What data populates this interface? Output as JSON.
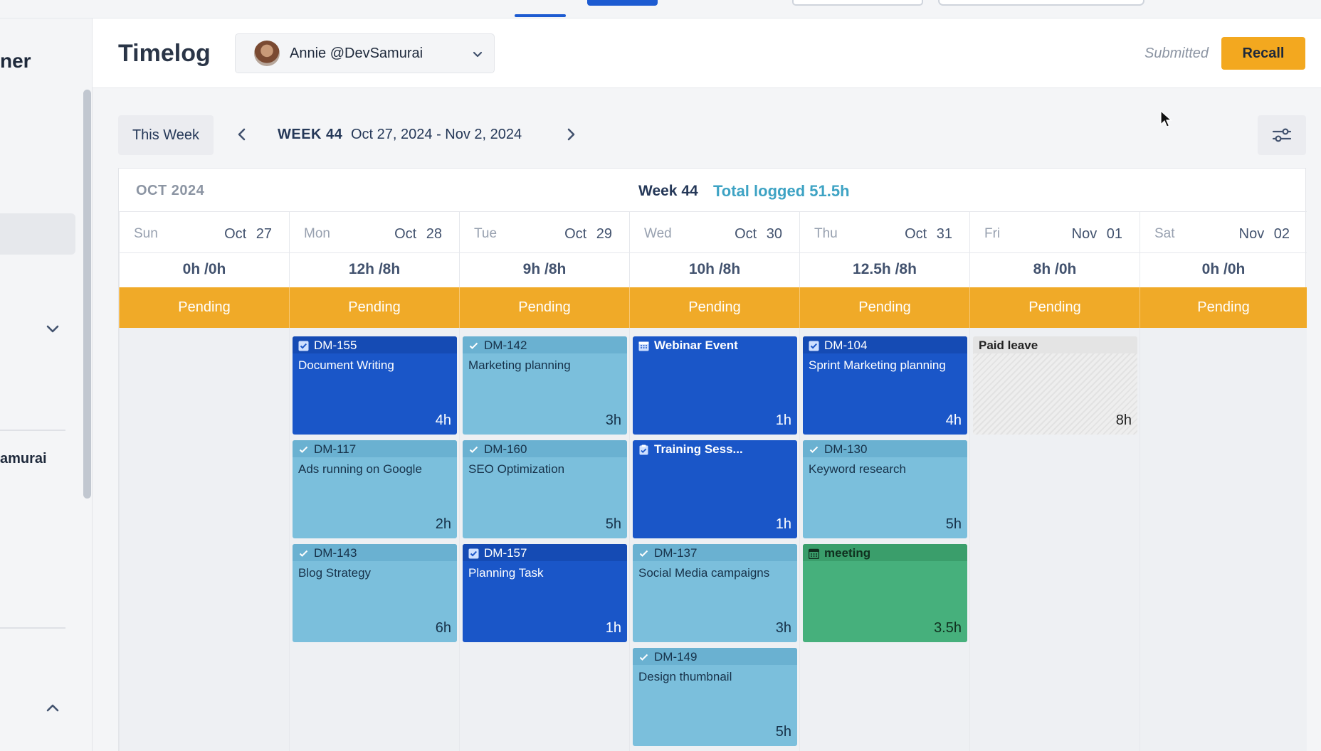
{
  "sidebar": {
    "title": "ner",
    "user": "amurai"
  },
  "header": {
    "title": "Timelog",
    "user_select": "Annie @DevSamurai",
    "status": "Submitted",
    "recall_label": "Recall"
  },
  "nav": {
    "this_week_label": "This Week",
    "week_label": "WEEK 44",
    "date_range": "Oct 27, 2024 - Nov 2, 2024"
  },
  "calendar": {
    "month": "OCT 2024",
    "week_title": "Week 44",
    "total_logged": "Total logged 51.5h",
    "days": [
      {
        "name": "Sun",
        "date": "Oct 27",
        "hours": "0h /0h",
        "status": "Pending"
      },
      {
        "name": "Mon",
        "date": "Oct 28",
        "hours": "12h /8h",
        "status": "Pending"
      },
      {
        "name": "Tue",
        "date": "Oct 29",
        "hours": "9h /8h",
        "status": "Pending"
      },
      {
        "name": "Wed",
        "date": "Oct 30",
        "hours": "10h /8h",
        "status": "Pending"
      },
      {
        "name": "Thu",
        "date": "Oct 31",
        "hours": "12.5h /8h",
        "status": "Pending"
      },
      {
        "name": "Fri",
        "date": "Nov 01",
        "hours": "8h /0h",
        "status": "Pending"
      },
      {
        "name": "Sat",
        "date": "Nov 02",
        "hours": "0h /0h",
        "status": "Pending"
      }
    ]
  },
  "cards": {
    "mon": [
      {
        "key": "DM-155",
        "title": "Document Writing",
        "hours": "4h",
        "style": "dark",
        "icon": "checkbox-icon"
      },
      {
        "key": "DM-117",
        "title": "Ads running on Google",
        "hours": "2h",
        "style": "light",
        "icon": "check-icon"
      },
      {
        "key": "DM-143",
        "title": "Blog Strategy",
        "hours": "6h",
        "style": "light",
        "icon": "check-icon"
      }
    ],
    "tue": [
      {
        "key": "DM-142",
        "title": "Marketing planning",
        "hours": "3h",
        "style": "light",
        "icon": "check-icon"
      },
      {
        "key": "DM-160",
        "title": "SEO Optimization",
        "hours": "5h",
        "style": "light",
        "icon": "check-icon"
      },
      {
        "key": "DM-157",
        "title": "Planning Task",
        "hours": "1h",
        "style": "dark",
        "icon": "checkbox-icon"
      }
    ],
    "wed": [
      {
        "key": "Webinar Event",
        "title": "",
        "hours": "1h",
        "style": "dark event",
        "icon": "calendar-icon"
      },
      {
        "key": "Training Sess...",
        "title": "",
        "hours": "1h",
        "style": "dark event",
        "icon": "clipboard-icon"
      },
      {
        "key": "DM-137",
        "title": "Social Media campaigns",
        "hours": "3h",
        "style": "light",
        "icon": "check-icon"
      },
      {
        "key": "DM-149",
        "title": "Design thumbnail",
        "hours": "5h",
        "style": "light",
        "icon": "check-icon"
      }
    ],
    "thu": [
      {
        "key": "DM-104",
        "title": "Sprint Marketing planning",
        "hours": "4h",
        "style": "dark",
        "icon": "checkbox-icon"
      },
      {
        "key": "DM-130",
        "title": "Keyword research",
        "hours": "5h",
        "style": "light",
        "icon": "check-icon"
      },
      {
        "key": "meeting",
        "title": "",
        "hours": "3.5h",
        "style": "green",
        "icon": "calendar-icon"
      }
    ],
    "fri": [
      {
        "key": "Paid leave",
        "title": "",
        "hours": "8h",
        "style": "leave",
        "icon": ""
      }
    ]
  },
  "colors": {
    "accent_orange": "#f3a81f",
    "task_blue": "#1a56c8",
    "task_light_blue": "#7bbfdc",
    "meeting_green": "#46b07c",
    "total_logged": "#3ea3c4"
  }
}
